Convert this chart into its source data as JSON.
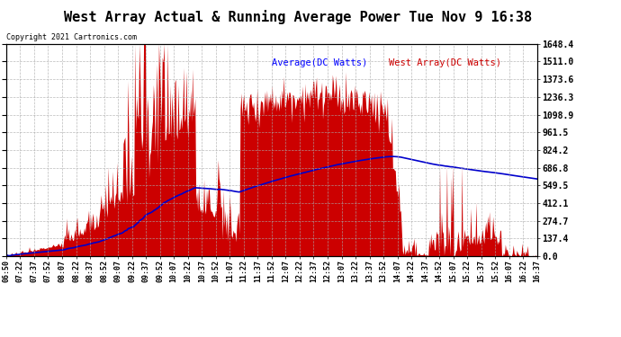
{
  "title": "West Array Actual & Running Average Power Tue Nov 9 16:38",
  "copyright": "Copyright 2021 Cartronics.com",
  "legend_avg": "Average(DC Watts)",
  "legend_west": "West Array(DC Watts)",
  "ylabel_right_ticks": [
    0.0,
    137.4,
    274.7,
    412.1,
    549.5,
    686.8,
    824.2,
    961.5,
    1098.9,
    1236.3,
    1373.6,
    1511.0,
    1648.4
  ],
  "ylim": [
    0,
    1648.4
  ],
  "x_labels": [
    "06:50",
    "07:22",
    "07:37",
    "07:52",
    "08:07",
    "08:22",
    "08:37",
    "08:52",
    "09:07",
    "09:22",
    "09:37",
    "09:52",
    "10:07",
    "10:22",
    "10:37",
    "10:52",
    "11:07",
    "11:22",
    "11:37",
    "11:52",
    "12:07",
    "12:22",
    "12:37",
    "12:52",
    "13:07",
    "13:22",
    "13:37",
    "13:52",
    "14:07",
    "14:22",
    "14:37",
    "14:52",
    "15:07",
    "15:22",
    "15:37",
    "15:52",
    "16:07",
    "16:22",
    "16:37"
  ],
  "background_color": "#ffffff",
  "plot_bg_color": "#ffffff",
  "grid_color": "#aaaaaa",
  "bar_color": "#cc0000",
  "avg_line_color": "#0000cc",
  "title_color": "#000000",
  "copyright_color": "#000000",
  "avg_label_color": "#0000ff",
  "west_label_color": "#cc0000"
}
